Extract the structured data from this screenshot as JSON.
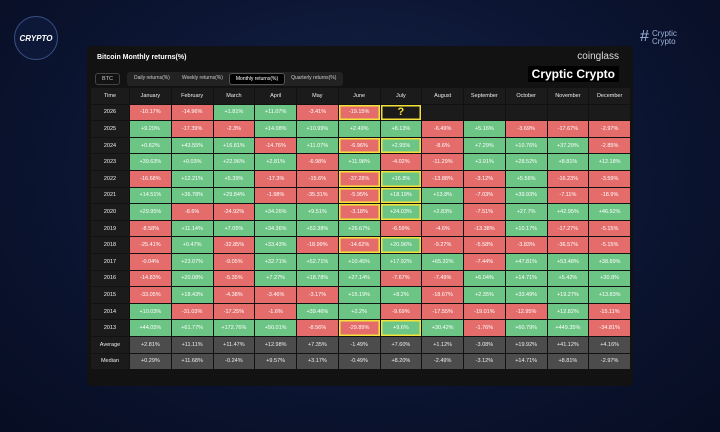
{
  "header": {
    "logo": "CRYPTO",
    "brand_line1": "Cryptic",
    "brand_line2": "Crypto"
  },
  "panel": {
    "title": "Bitcoin Monthly returns(%)",
    "source": "coinglass",
    "banner": "Cryptic Crypto",
    "asset": "BTC",
    "tabs": [
      "Daily returns(%)",
      "Weekly returns(%)",
      "Monthly returns(%)",
      "Quarterly returns(%)"
    ]
  },
  "table": {
    "columns": [
      "Time",
      "January",
      "February",
      "March",
      "April",
      "May",
      "June",
      "July",
      "August",
      "September",
      "October",
      "November",
      "December"
    ],
    "rows": [
      {
        "label": "2026",
        "cells": [
          "-10.17%",
          "-14.96%",
          "+1.81%",
          "+11.07%",
          "-3.41%",
          "-19.15%",
          "?",
          null,
          null,
          null,
          null,
          null
        ]
      },
      {
        "label": "2025",
        "cells": [
          "+9.29%",
          "-17.39%",
          "-2.3%",
          "+14.08%",
          "+10.99%",
          "+2.49%",
          "+8.13%",
          "-6.49%",
          "+5.16%",
          "-3.69%",
          "-17.67%",
          "-2.97%"
        ]
      },
      {
        "label": "2024",
        "cells": [
          "+0.62%",
          "+43.55%",
          "+16.81%",
          "-14.76%",
          "+11.07%",
          "-6.96%",
          "+2.95%",
          "-8.6%",
          "+7.29%",
          "+10.76%",
          "+37.29%",
          "-2.85%"
        ]
      },
      {
        "label": "2023",
        "cells": [
          "+39.63%",
          "+0.03%",
          "+22.96%",
          "+2.81%",
          "-6.98%",
          "+11.98%",
          "-4.02%",
          "-11.29%",
          "+3.91%",
          "+28.52%",
          "+8.81%",
          "+12.18%"
        ]
      },
      {
        "label": "2022",
        "cells": [
          "-16.68%",
          "+12.21%",
          "+5.39%",
          "-17.3%",
          "-15.6%",
          "-37.28%",
          "+16.8%",
          "-13.88%",
          "-3.12%",
          "+5.56%",
          "-16.23%",
          "-3.59%"
        ]
      },
      {
        "label": "2021",
        "cells": [
          "+14.51%",
          "+36.78%",
          "+29.84%",
          "-1.98%",
          "-35.31%",
          "-5.95%",
          "+18.19%",
          "+13.8%",
          "-7.03%",
          "+39.93%",
          "-7.11%",
          "-18.9%"
        ]
      },
      {
        "label": "2020",
        "cells": [
          "+29.95%",
          "-8.6%",
          "-24.92%",
          "+34.26%",
          "+9.51%",
          "-3.18%",
          "+24.03%",
          "+2.83%",
          "-7.51%",
          "+27.7%",
          "+42.95%",
          "+46.92%"
        ]
      },
      {
        "label": "2019",
        "cells": [
          "-8.58%",
          "+11.14%",
          "+7.05%",
          "+34.36%",
          "+52.38%",
          "+26.67%",
          "-6.59%",
          "-4.6%",
          "-13.38%",
          "+10.17%",
          "-17.27%",
          "-5.15%"
        ]
      },
      {
        "label": "2018",
        "cells": [
          "-25.41%",
          "+0.47%",
          "-32.85%",
          "+33.43%",
          "-18.99%",
          "-14.62%",
          "+20.96%",
          "-9.27%",
          "-5.58%",
          "-3.83%",
          "-36.57%",
          "-5.15%"
        ]
      },
      {
        "label": "2017",
        "cells": [
          "-0.04%",
          "+23.07%",
          "-9.05%",
          "+32.71%",
          "+52.71%",
          "+10.45%",
          "+17.92%",
          "+65.32%",
          "-7.44%",
          "+47.81%",
          "+53.48%",
          "+38.89%"
        ]
      },
      {
        "label": "2016",
        "cells": [
          "-14.83%",
          "+20.08%",
          "-5.35%",
          "+7.27%",
          "+18.78%",
          "+27.14%",
          "-7.67%",
          "-7.49%",
          "+6.04%",
          "+14.71%",
          "+5.42%",
          "+30.8%"
        ]
      },
      {
        "label": "2015",
        "cells": [
          "-33.05%",
          "+18.43%",
          "-4.38%",
          "-3.46%",
          "-3.17%",
          "+15.19%",
          "+8.2%",
          "-18.67%",
          "+2.35%",
          "+33.49%",
          "+19.27%",
          "+13.83%"
        ]
      },
      {
        "label": "2014",
        "cells": [
          "+10.03%",
          "-31.03%",
          "-17.25%",
          "-1.6%",
          "+39.46%",
          "+2.2%",
          "-9.69%",
          "-17.55%",
          "-19.01%",
          "-12.95%",
          "+12.82%",
          "-15.11%"
        ]
      },
      {
        "label": "2013",
        "cells": [
          "+44.05%",
          "+61.77%",
          "+172.76%",
          "+50.01%",
          "-8.56%",
          "-29.89%",
          "+9.6%",
          "+30.42%",
          "-1.76%",
          "+60.79%",
          "+449.35%",
          "-34.81%"
        ]
      },
      {
        "label": "Average",
        "cells": [
          "+2.81%",
          "+11.11%",
          "+11.47%",
          "+12.98%",
          "+7.35%",
          "-1.49%",
          "+7.60%",
          "+1.12%",
          "-3.08%",
          "+19.92%",
          "+41.12%",
          "+4.16%"
        ]
      },
      {
        "label": "Median",
        "cells": [
          "+0.29%",
          "+11.68%",
          "-0.24%",
          "+9.57%",
          "+3.17%",
          "-0.49%",
          "+8.20%",
          "-2.49%",
          "-3.12%",
          "+14.71%",
          "+8.81%",
          "-2.97%"
        ]
      }
    ]
  }
}
